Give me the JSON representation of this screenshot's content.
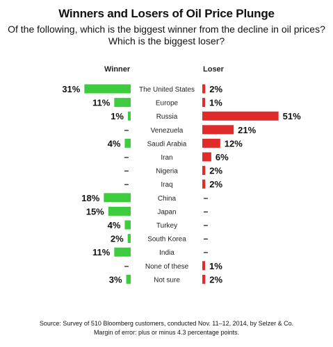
{
  "title": "Winners and Losers of Oil Price Plunge",
  "subtitle_line1": "Of the following, which is the biggest winner from the decline in oil prices?",
  "subtitle_line2": "Which is the biggest loser?",
  "footnote_line1": "Source: Survey of 510 Bloomberg customers, conducted Nov. 11–12, 2014, by Selzer & Co.",
  "footnote_line2": "Margin of error: plus or minus 4.3 percentage points.",
  "colors": {
    "winner": "#3dcc3d",
    "loser": "#e02b2b"
  },
  "chart_data": {
    "type": "bar",
    "orientation": "horizontal-diverging",
    "unit": "%",
    "categories": [
      "The United States",
      "Europe",
      "Russia",
      "Venezuela",
      "Saudi Arabia",
      "Iran",
      "Nigeria",
      "Iraq",
      "China",
      "Japan",
      "Turkey",
      "South Korea",
      "India",
      "None of these",
      "Not sure"
    ],
    "series": [
      {
        "name": "Winner",
        "values": [
          31,
          11,
          1,
          null,
          4,
          null,
          null,
          null,
          18,
          15,
          4,
          2,
          11,
          null,
          3
        ]
      },
      {
        "name": "Loser",
        "values": [
          2,
          1,
          51,
          21,
          12,
          6,
          2,
          2,
          null,
          null,
          null,
          null,
          null,
          1,
          2
        ]
      }
    ],
    "missing_label": "–"
  }
}
